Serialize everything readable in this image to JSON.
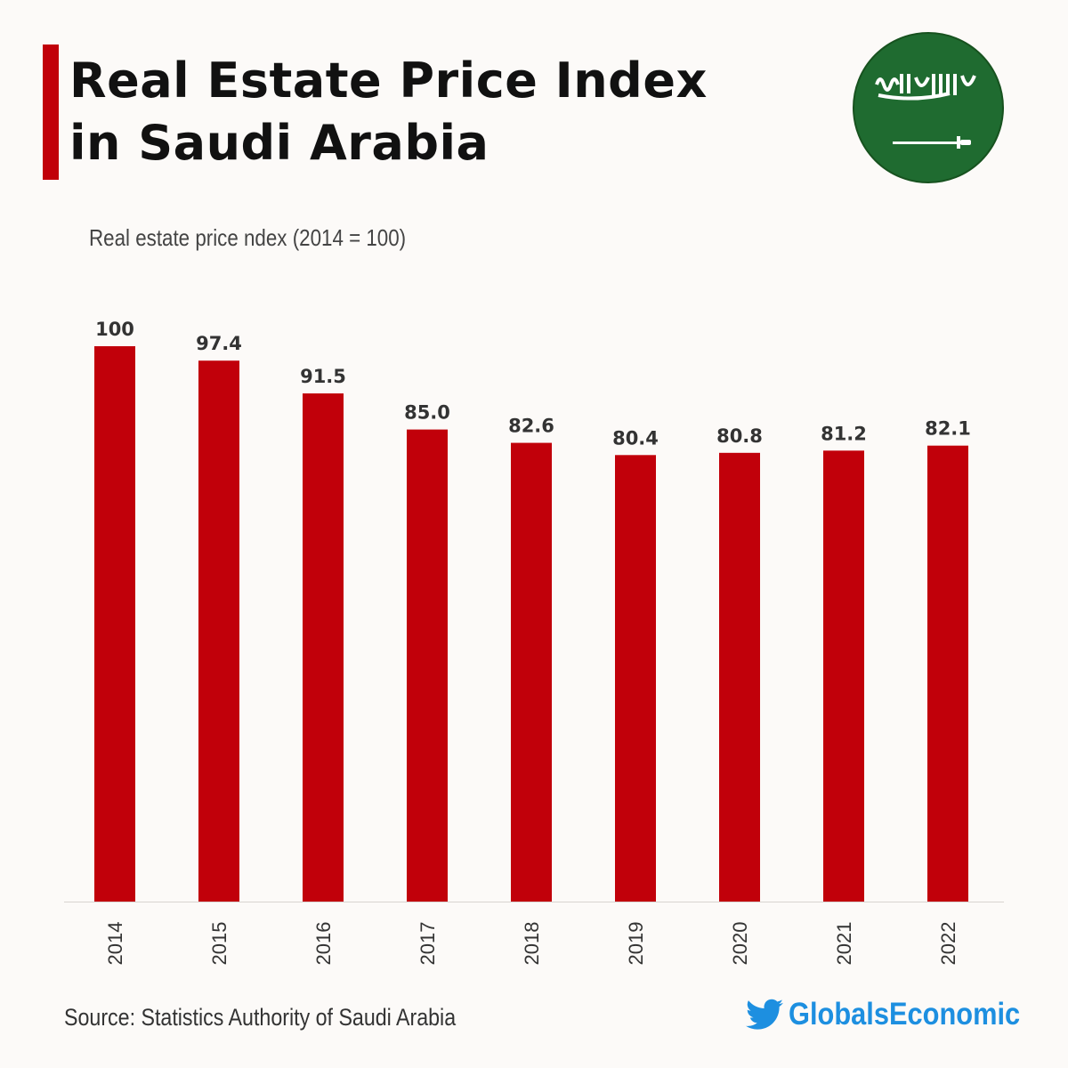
{
  "header": {
    "title_line1": "Real Estate Price Index",
    "title_line2": "in Saudi Arabia",
    "flag_icon": "saudi-arabia-flag-icon"
  },
  "footer": {
    "source": "Source: Statistics Authority of Saudi Arabia",
    "brand": "GlobalsEconomic",
    "brand_icon": "twitter-bird-icon"
  },
  "colors": {
    "bar": "#c1000a",
    "accent": "#c1000a",
    "brand": "#1d8fe0",
    "flag": "#1f6b30"
  },
  "chart_data": {
    "type": "bar",
    "title": "Real Estate Price Index in Saudi Arabia",
    "subtitle": "Real estate price ndex (2014 = 100)",
    "categories": [
      "2014",
      "2015",
      "2016",
      "2017",
      "2018",
      "2019",
      "2020",
      "2021",
      "2022"
    ],
    "values": [
      100,
      97.4,
      91.5,
      85.0,
      82.6,
      80.4,
      80.8,
      81.2,
      82.1
    ],
    "labels": [
      "100",
      "97.4",
      "91.5",
      "85.0",
      "82.6",
      "80.4",
      "80.8",
      "81.2",
      "82.1"
    ],
    "ylim": [
      0,
      100
    ],
    "grid": false,
    "xlabel": "",
    "ylabel": ""
  }
}
